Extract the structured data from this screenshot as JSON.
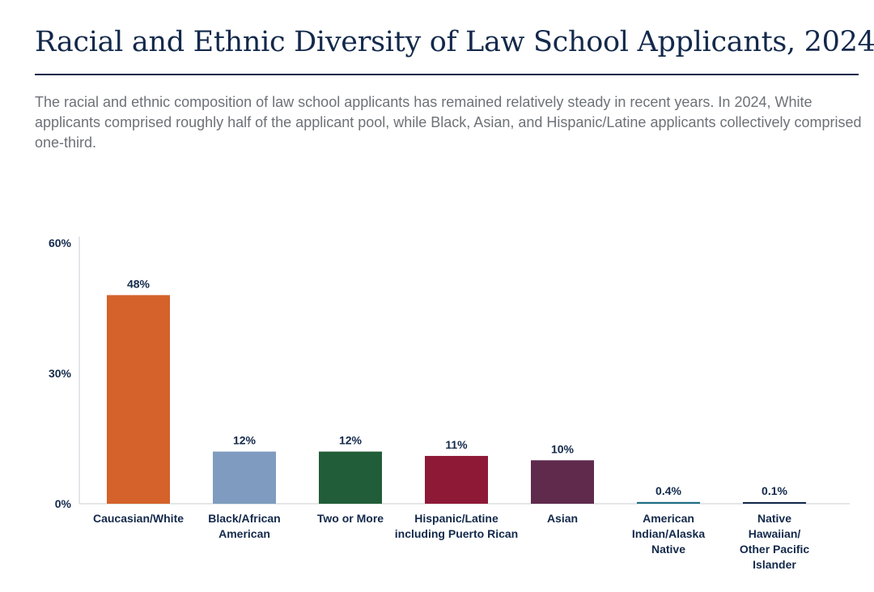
{
  "header": {
    "title": "Racial and Ethnic Diversity of Law School Applicants, 2024",
    "subtitle": "The racial and ethnic composition of law school applicants has remained relatively steady in recent years. In 2024, White applicants comprised roughly half of the applicant pool, while Black, Asian, and Hispanic/Latine applicants collectively comprised one-third."
  },
  "chart_data": {
    "type": "bar",
    "title": "Racial and Ethnic Diversity of Law School Applicants, 2024",
    "xlabel": "",
    "ylabel": "",
    "ylim": [
      0,
      60
    ],
    "yticks": [
      "0%",
      "30%",
      "60%"
    ],
    "ytick_values": [
      0,
      30,
      60
    ],
    "grid": false,
    "legend": "none",
    "categories": [
      "Caucasian/White",
      "Black/African American",
      "Two or More",
      "Hispanic/Latine including Puerto Rican",
      "Asian",
      "American Indian/Alaska Native",
      "Native Hawaiian/Other Pacific Islander"
    ],
    "category_lines": [
      [
        "Caucasian/White"
      ],
      [
        "Black/African",
        "American"
      ],
      [
        "Two or More"
      ],
      [
        "Hispanic/Latine",
        "including Puerto Rican"
      ],
      [
        "Asian"
      ],
      [
        "American",
        "Indian/Alaska",
        "Native"
      ],
      [
        "Native",
        "Hawaiian/",
        "Other Pacific",
        "Islander"
      ]
    ],
    "values": [
      48,
      12,
      12,
      11,
      10,
      0.4,
      0.1
    ],
    "value_labels": [
      "48%",
      "12%",
      "12%",
      "11%",
      "10%",
      "0.4%",
      "0.1%"
    ],
    "colors": [
      "#d4622a",
      "#7f9cc0",
      "#215d38",
      "#8e1937",
      "#5f2a4c",
      "#1e6e85",
      "#13294b"
    ]
  }
}
